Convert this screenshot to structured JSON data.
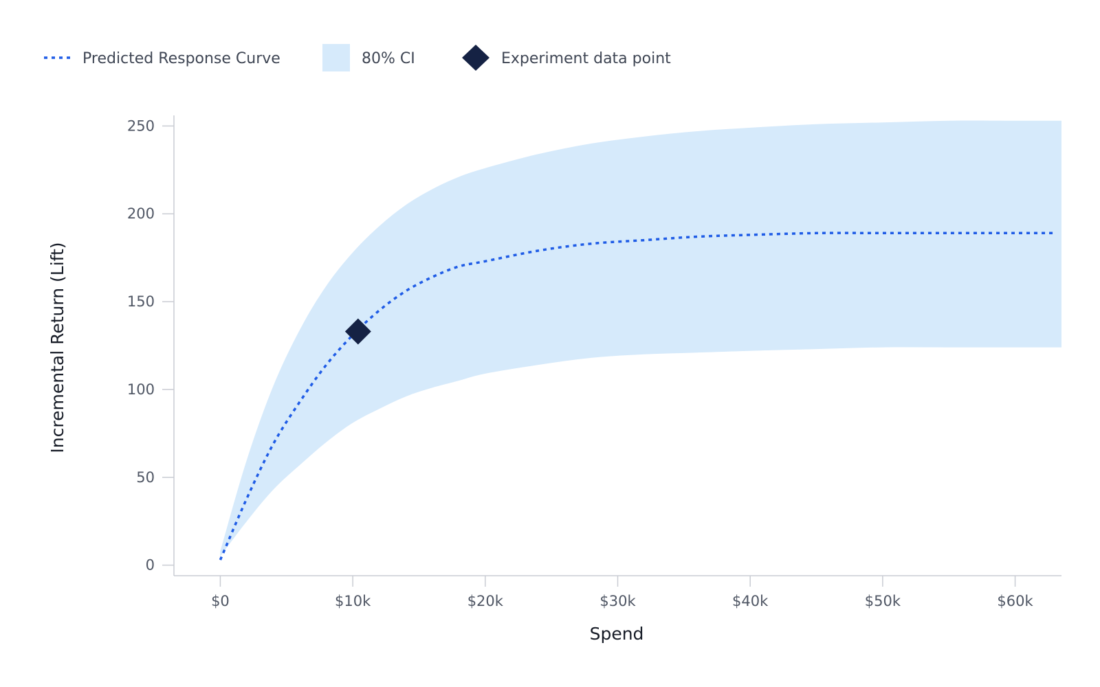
{
  "legend": {
    "curve_label": "Predicted Response Curve",
    "ci_label": "80% CI",
    "point_label": "Experiment data point"
  },
  "colors": {
    "curve": "#1f5ce6",
    "ci_band": "#d6eafb",
    "point": "#152244",
    "axis": "#c9ccd3",
    "tick_text": "#4f5664",
    "title_text": "#161b26"
  },
  "chart_data": {
    "type": "line",
    "xlabel": "Spend",
    "ylabel": "Incremental Return (Lift)",
    "xlim": [
      -3500,
      63500
    ],
    "ylim": [
      -6,
      256
    ],
    "x_ticks": [
      0,
      10000,
      20000,
      30000,
      40000,
      50000,
      60000
    ],
    "x_tick_labels": [
      "$0",
      "$10k",
      "$20k",
      "$30k",
      "$40k",
      "$50k",
      "$60k"
    ],
    "y_ticks": [
      0,
      50,
      100,
      150,
      200,
      250
    ],
    "y_tick_labels": [
      "0",
      "50",
      "100",
      "150",
      "200",
      "250"
    ],
    "grid": false,
    "legend_position": "top-left",
    "series": [
      {
        "name": "Predicted Response Curve",
        "style": "dotted",
        "x": [
          0,
          2000,
          4000,
          6000,
          8000,
          10000,
          12000,
          14000,
          16000,
          18000,
          20000,
          24000,
          28000,
          32000,
          36000,
          40000,
          45000,
          50000,
          55000,
          60000,
          63000
        ],
        "y": [
          3,
          38,
          69,
          93,
          114,
          131,
          145,
          156,
          164,
          170,
          173,
          179,
          183,
          185,
          187,
          188,
          189,
          189,
          189,
          189,
          189
        ]
      },
      {
        "name": "80% CI",
        "style": "band",
        "x": [
          0,
          2000,
          4000,
          6000,
          8000,
          10000,
          12000,
          14000,
          16000,
          18000,
          20000,
          24000,
          28000,
          32000,
          36000,
          40000,
          45000,
          50000,
          55000,
          60000,
          63500
        ],
        "lower": [
          5,
          25,
          43,
          57,
          70,
          81,
          89,
          96,
          101,
          105,
          109,
          114,
          118,
          120,
          121,
          122,
          123,
          124,
          124,
          124,
          124
        ],
        "upper": [
          8,
          60,
          102,
          134,
          159,
          178,
          193,
          205,
          214,
          221,
          226,
          234,
          240,
          244,
          247,
          249,
          251,
          252,
          253,
          253,
          253
        ]
      },
      {
        "name": "Experiment data point",
        "style": "marker",
        "x": [
          10400
        ],
        "y": [
          133
        ]
      }
    ]
  }
}
